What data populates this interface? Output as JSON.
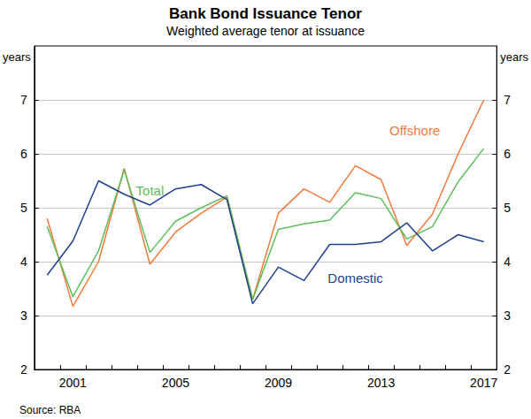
{
  "chart_data": {
    "type": "line",
    "title": "Bank Bond Issuance Tenor",
    "subtitle": "Weighted average tenor at issuance",
    "y_label": "years",
    "source": "Source: RBA",
    "categories": [
      null,
      "2001",
      null,
      null,
      null,
      "2005",
      null,
      null,
      null,
      "2009",
      null,
      null,
      null,
      "2013",
      null,
      null,
      null,
      "2017"
    ],
    "series": [
      {
        "name": "Offshore",
        "color": "#f4793b",
        "values": [
          4.8,
          3.17,
          4.0,
          5.73,
          3.95,
          4.55,
          4.9,
          5.2,
          3.3,
          4.9,
          5.35,
          5.1,
          5.78,
          5.52,
          4.3,
          4.88,
          6.0,
          7.0
        ]
      },
      {
        "name": "Total",
        "color": "#5cbf5a",
        "values": [
          4.65,
          3.35,
          4.2,
          5.7,
          4.17,
          4.75,
          5.0,
          5.22,
          3.3,
          4.6,
          4.7,
          4.77,
          5.28,
          5.17,
          4.42,
          4.65,
          5.48,
          6.1
        ]
      },
      {
        "name": "Domestic",
        "color": "#1f3f8f",
        "values": [
          3.75,
          4.38,
          5.5,
          5.25,
          5.05,
          5.35,
          5.43,
          5.15,
          3.22,
          3.9,
          3.65,
          4.32,
          4.32,
          4.37,
          4.72,
          4.2,
          4.5,
          4.37
        ]
      }
    ],
    "ylim": [
      2,
      8
    ],
    "yticks": [
      2,
      3,
      4,
      5,
      6,
      7
    ],
    "grid": true
  }
}
